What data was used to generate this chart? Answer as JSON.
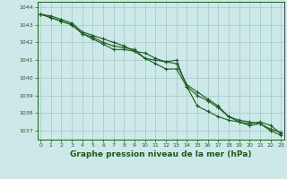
{
  "title": "Graphe pression niveau de la mer (hPa)",
  "background_color": "#cce8e8",
  "grid_color": "#aacccc",
  "line_color": "#1a5c1a",
  "marker_color": "#1a5c1a",
  "xlim": [
    -0.3,
    23.3
  ],
  "ylim": [
    1036.5,
    1044.3
  ],
  "yticks": [
    1037,
    1038,
    1039,
    1040,
    1041,
    1042,
    1043,
    1044
  ],
  "xticks": [
    0,
    1,
    2,
    3,
    4,
    5,
    6,
    7,
    8,
    9,
    10,
    11,
    12,
    13,
    14,
    15,
    16,
    17,
    18,
    19,
    20,
    21,
    22,
    23
  ],
  "series1": [
    1043.6,
    1043.4,
    1043.2,
    1043.0,
    1042.5,
    1042.3,
    1042.0,
    1041.8,
    1041.7,
    1041.6,
    1041.1,
    1041.0,
    1040.9,
    1040.8,
    1039.6,
    1039.2,
    1038.8,
    1038.4,
    1037.8,
    1037.6,
    1037.5,
    1037.4,
    1037.1,
    1036.9
  ],
  "series2": [
    1043.6,
    1043.5,
    1043.3,
    1043.1,
    1042.6,
    1042.4,
    1042.2,
    1042.0,
    1041.8,
    1041.5,
    1041.1,
    1040.8,
    1040.5,
    1040.5,
    1039.5,
    1039.0,
    1038.7,
    1038.3,
    1037.8,
    1037.5,
    1037.4,
    1037.5,
    1037.3,
    1036.85
  ],
  "series3": [
    1043.6,
    1043.4,
    1043.2,
    1043.0,
    1042.5,
    1042.2,
    1041.9,
    1041.6,
    1041.6,
    1041.5,
    1041.4,
    1041.1,
    1040.9,
    1041.0,
    1039.5,
    1038.4,
    1038.1,
    1037.8,
    1037.6,
    1037.5,
    1037.3,
    1037.4,
    1037.0,
    1036.75
  ],
  "title_fontsize": 6.5,
  "tick_fontsize": 4.5
}
